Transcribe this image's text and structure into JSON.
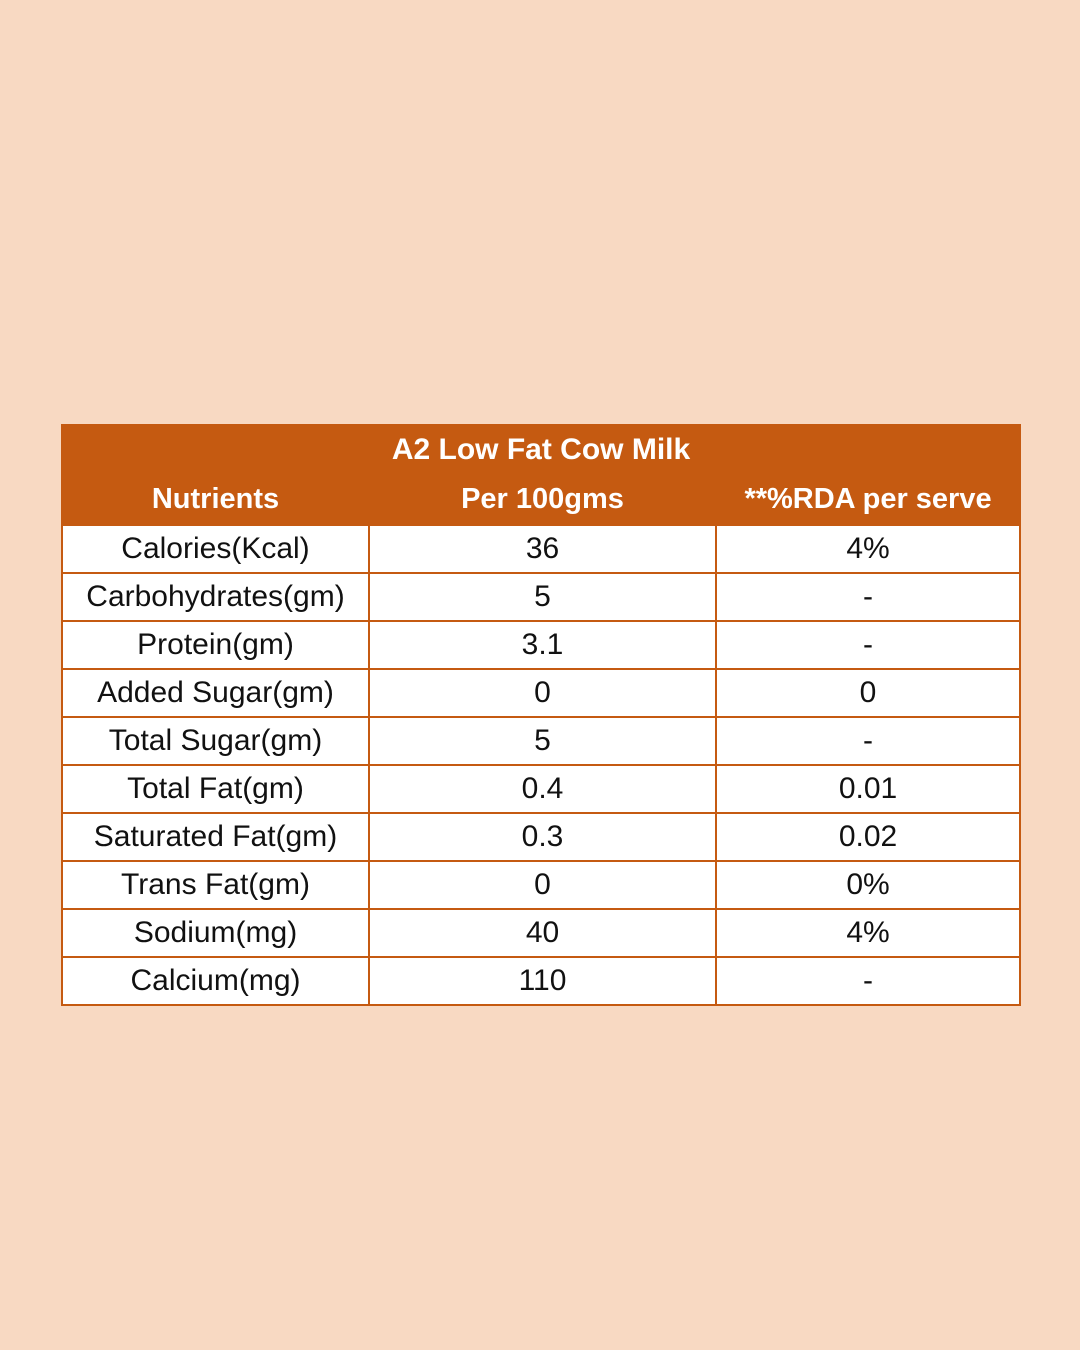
{
  "table": {
    "title": "A2 Low Fat Cow Milk",
    "headers": [
      "Nutrients",
      "Per 100gms",
      "**%RDA per serve"
    ],
    "rows": [
      [
        "Calories(Kcal)",
        "36",
        "4%"
      ],
      [
        "Carbohydrates(gm)",
        "5",
        "-"
      ],
      [
        "Protein(gm)",
        "3.1",
        "-"
      ],
      [
        "Added Sugar(gm)",
        "0",
        "0"
      ],
      [
        "Total Sugar(gm)",
        "5",
        "-"
      ],
      [
        "Total Fat(gm)",
        "0.4",
        "0.01"
      ],
      [
        "Saturated Fat(gm)",
        "0.3",
        "0.02"
      ],
      [
        "Trans Fat(gm)",
        "0",
        "0%"
      ],
      [
        "Sodium(mg)",
        "40",
        "4%"
      ],
      [
        "Calcium(mg)",
        "110",
        "-"
      ]
    ]
  },
  "colors": {
    "background": "#f8d9c2",
    "header": "#c55a11",
    "header_text": "#ffffff",
    "border": "#c55a11"
  }
}
